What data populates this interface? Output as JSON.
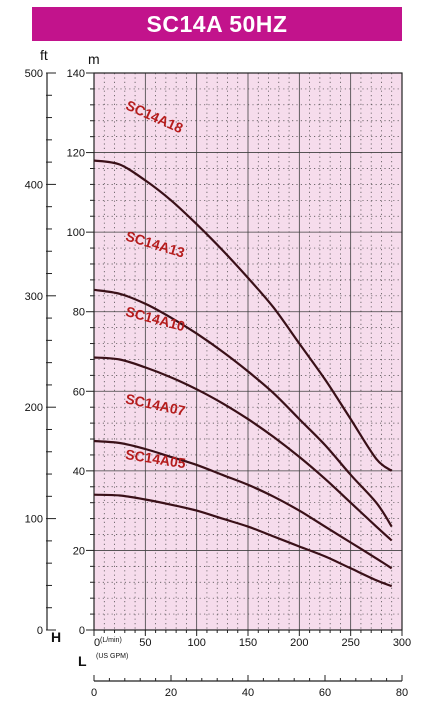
{
  "title": "SC14A 50HZ",
  "colors": {
    "title_bg": "#c2138c",
    "title_text": "#ffffff",
    "plot_bg": "#f6dcec",
    "grid": "#404040",
    "curve": "#3a1018",
    "curve_label": "#b51c1c"
  },
  "chart_data": {
    "type": "line",
    "title": "SC14A 50HZ",
    "axes": {
      "left_ft": {
        "unit": "ft",
        "ticks": [
          "0",
          "100",
          "200",
          "300",
          "400",
          "500"
        ],
        "range": [
          0,
          500
        ]
      },
      "left_m": {
        "unit": "m",
        "ticks": [
          "0",
          "20",
          "40",
          "60",
          "80",
          "100",
          "120",
          "140"
        ],
        "range": [
          0,
          140
        ]
      },
      "left_symbol": "H",
      "x_lmin": {
        "unit_label": "(L/min)",
        "ticks": [
          "0",
          "50",
          "100",
          "150",
          "200",
          "250",
          "300"
        ],
        "range": [
          0,
          300
        ]
      },
      "x_gpm": {
        "unit_label": "(US GPM)",
        "ticks": [
          "0",
          "20",
          "40",
          "60",
          "80"
        ],
        "range": [
          0,
          80
        ]
      },
      "bottom_symbol": "L"
    },
    "grid": true,
    "x_unit": "L/min",
    "y_unit": "m",
    "series": [
      {
        "name": "SC14A18",
        "x": [
          0,
          25,
          50,
          75,
          100,
          125,
          150,
          175,
          200,
          225,
          250,
          275,
          290
        ],
        "y": [
          118,
          117,
          113,
          108,
          102,
          95.5,
          88.5,
          81,
          72,
          63,
          53,
          43,
          40
        ]
      },
      {
        "name": "SC14A13",
        "x": [
          0,
          25,
          50,
          75,
          100,
          125,
          150,
          175,
          200,
          225,
          250,
          275,
          290
        ],
        "y": [
          85.5,
          84.5,
          82,
          78.5,
          74.5,
          70,
          65,
          59.5,
          53,
          46.5,
          39,
          32,
          26
        ]
      },
      {
        "name": "SC14A10",
        "x": [
          0,
          25,
          50,
          75,
          100,
          125,
          150,
          175,
          200,
          225,
          250,
          275,
          290
        ],
        "y": [
          68.5,
          68,
          66,
          63.5,
          60.5,
          57,
          53,
          48.5,
          43.5,
          38,
          32,
          26,
          22.5
        ]
      },
      {
        "name": "SC14A07",
        "x": [
          0,
          25,
          50,
          75,
          100,
          125,
          150,
          175,
          200,
          225,
          250,
          275,
          290
        ],
        "y": [
          47.5,
          47,
          45.5,
          43.5,
          41.5,
          39,
          36.5,
          33.5,
          30,
          26,
          22,
          18,
          15.5
        ]
      },
      {
        "name": "SC14A05",
        "x": [
          0,
          25,
          50,
          75,
          100,
          125,
          150,
          175,
          200,
          225,
          250,
          275,
          290
        ],
        "y": [
          34,
          33.8,
          32.8,
          31.5,
          30,
          28,
          26,
          23.5,
          21,
          18.5,
          15.5,
          12.5,
          11
        ]
      }
    ]
  }
}
